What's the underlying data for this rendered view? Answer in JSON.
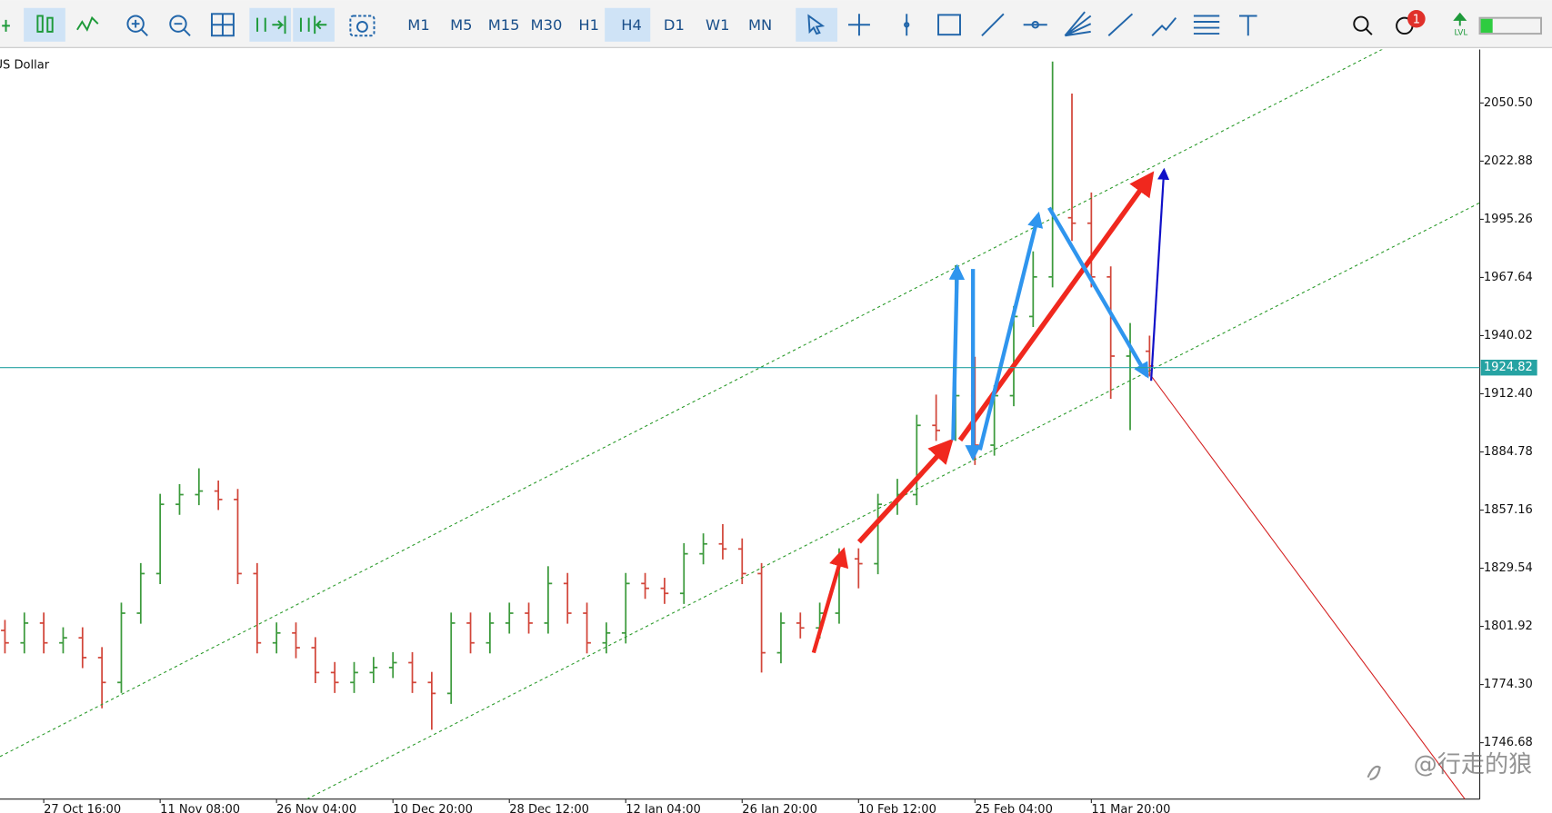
{
  "toolbar": {
    "timeframes": [
      "M1",
      "M5",
      "M15",
      "M30",
      "H1",
      "H4",
      "D1",
      "W1",
      "MN"
    ],
    "active_timeframe": "H4",
    "notification_count": 1
  },
  "watermark": "@行走的狼",
  "chart_data": {
    "type": "ohlc",
    "title": "US Dollar",
    "categories": [
      null,
      null,
      "27 Oct 16:00",
      null,
      null,
      null,
      null,
      null,
      "11 Nov 08:00",
      null,
      null,
      null,
      null,
      null,
      "26 Nov 04:00",
      null,
      null,
      null,
      null,
      null,
      "10 Dec 20:00",
      null,
      null,
      null,
      null,
      null,
      "28 Dec 12:00",
      null,
      null,
      null,
      null,
      null,
      "12 Jan 04:00",
      null,
      null,
      null,
      null,
      null,
      "26 Jan 20:00",
      null,
      null,
      null,
      null,
      null,
      "10 Feb 12:00",
      null,
      null,
      null,
      null,
      null,
      "25 Feb 04:00",
      null,
      null,
      null,
      null,
      null,
      "11 Mar 20:00",
      null,
      null,
      null
    ],
    "open": [
      1800.0,
      1794.1,
      1803.5,
      1794.1,
      1796.5,
      1787.1,
      1775.3,
      1808.2,
      1827.0,
      1859.9,
      1864.5,
      1866.2,
      1862.2,
      1827.0,
      1794.1,
      1798.8,
      1791.8,
      1780.0,
      1775.3,
      1780.0,
      1782.4,
      1784.7,
      1775.3,
      1770.1,
      1803.5,
      1794.1,
      1803.5,
      1808.2,
      1803.5,
      1822.3,
      1808.2,
      1794.1,
      1798.8,
      1822.3,
      1820.0,
      1817.6,
      1836.4,
      1841.1,
      1838.7,
      1827.0,
      1789.4,
      1803.5,
      1801.2,
      1808.2,
      1834.0,
      1831.7,
      1859.9,
      1864.5,
      1897.4,
      1895.0,
      1911.5,
      1888.0,
      1911.5,
      1949.1,
      1967.9,
      1996.0,
      1993.4,
      1967.9,
      1930.3,
      1932.6
    ],
    "high": [
      1805.0,
      1808.5,
      1808.5,
      1801.5,
      1801.5,
      1792.1,
      1813.2,
      1832.0,
      1864.9,
      1869.5,
      1877.0,
      1871.2,
      1867.2,
      1832.0,
      1803.8,
      1803.8,
      1796.8,
      1785.0,
      1785.0,
      1787.4,
      1789.7,
      1789.7,
      1780.3,
      1808.5,
      1808.5,
      1808.5,
      1813.2,
      1813.2,
      1830.5,
      1827.3,
      1813.2,
      1803.8,
      1827.3,
      1827.3,
      1825.0,
      1841.4,
      1846.1,
      1850.5,
      1843.7,
      1832.0,
      1808.5,
      1808.5,
      1813.2,
      1839.0,
      1839.0,
      1864.9,
      1872.0,
      1902.4,
      1912.0,
      1973.5,
      1930.0,
      1916.5,
      1954.1,
      1980.0,
      2070.2,
      2055.0,
      2008.0,
      1972.9,
      1946.0,
      1940.0
    ],
    "low": [
      1789.1,
      1789.1,
      1789.1,
      1789.1,
      1782.1,
      1763.0,
      1770.3,
      1803.2,
      1822.0,
      1854.9,
      1859.5,
      1857.2,
      1822.0,
      1789.1,
      1789.1,
      1786.8,
      1775.0,
      1770.3,
      1770.3,
      1775.0,
      1777.4,
      1770.3,
      1752.8,
      1765.1,
      1789.1,
      1789.1,
      1798.5,
      1798.5,
      1798.5,
      1803.2,
      1789.1,
      1789.1,
      1793.8,
      1815.0,
      1812.6,
      1812.6,
      1831.4,
      1833.7,
      1822.0,
      1780.0,
      1784.4,
      1796.2,
      1796.2,
      1803.2,
      1820.0,
      1826.7,
      1854.9,
      1859.5,
      1890.0,
      1890.0,
      1878.6,
      1883.0,
      1906.5,
      1944.1,
      1962.9,
      1985.0,
      1962.9,
      1910.0,
      1895.1,
      1920.6
    ],
    "close": [
      1794.1,
      1803.5,
      1794.1,
      1796.5,
      1787.1,
      1775.3,
      1808.2,
      1827.0,
      1859.9,
      1864.5,
      1866.2,
      1862.2,
      1827.0,
      1794.1,
      1798.8,
      1791.8,
      1780.0,
      1775.3,
      1780.0,
      1782.4,
      1784.7,
      1775.3,
      1770.1,
      1803.5,
      1794.1,
      1803.5,
      1808.2,
      1803.5,
      1822.3,
      1808.2,
      1794.1,
      1798.8,
      1822.3,
      1820.0,
      1817.6,
      1836.4,
      1841.1,
      1838.7,
      1827.0,
      1789.4,
      1803.5,
      1801.2,
      1808.2,
      1834.0,
      1831.7,
      1859.9,
      1864.5,
      1897.4,
      1895.0,
      1911.5,
      1888.0,
      1911.5,
      1949.1,
      1967.9,
      1996.0,
      1993.4,
      1967.9,
      1930.3,
      1932.6,
      1925.6
    ],
    "up_color": "#3c9a3c",
    "down_color": "#d2463a",
    "ylim": [
      1719.9,
      2075.9
    ],
    "yticks": [
      {
        "value": 2050.5,
        "label": "2050.50"
      },
      2022.88,
      1995.26,
      1967.64,
      1940.02,
      {
        "value": 1912.4,
        "label": "1912.40"
      },
      1884.78,
      1857.16,
      1829.54,
      1801.92,
      {
        "value": 1774.3,
        "label": "1774.30"
      },
      1746.68
    ],
    "current_price": 1924.82,
    "current_price_color": "#26a3a3",
    "grid": false
  }
}
